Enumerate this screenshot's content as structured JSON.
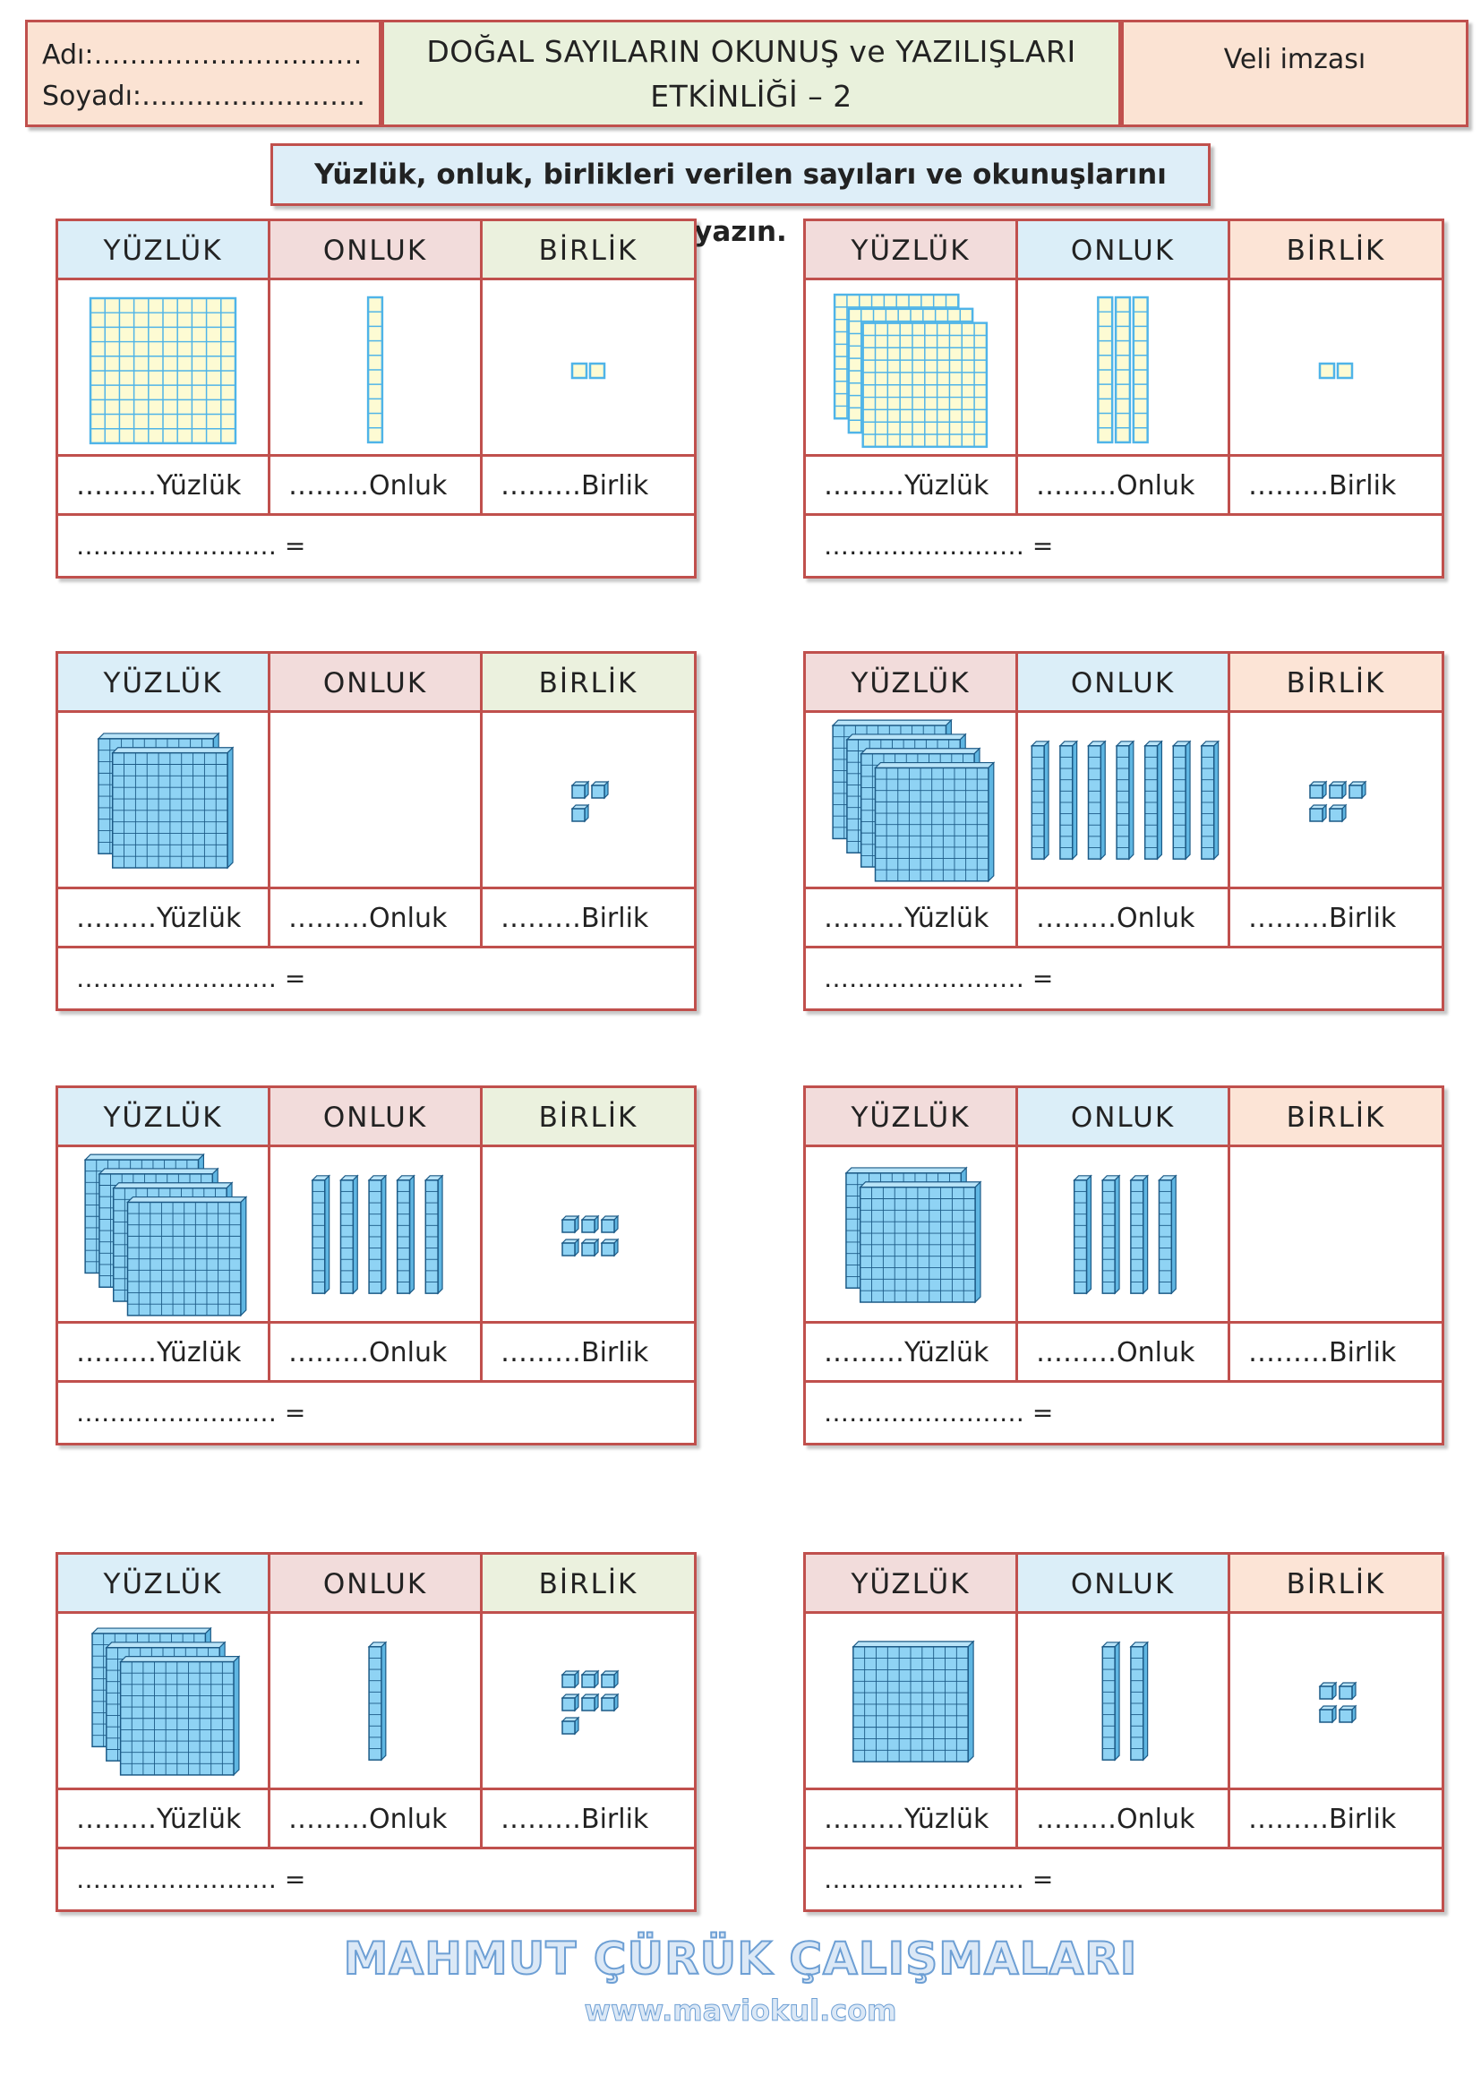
{
  "header": {
    "name_label": "Adı:",
    "name_dots": "………………………………………",
    "surname_label": "Soyadı:",
    "surname_dots": "…………………………….",
    "title_line1": "DOĞAL SAYILARIN OKUNUŞ ve YAZILIŞLARI",
    "title_line2": "ETKİNLİĞİ – 2",
    "signature_label": "Veli imzası"
  },
  "instruction": "Yüzlük, onluk, birlikleri verilen sayıları ve okunuşlarını yazın.",
  "labels": {
    "hundreds": "YÜZLÜK",
    "tens": "ONLUK",
    "ones": "BİRLİK",
    "hundreds_blank": "………Yüzlük",
    "tens_blank": "………Onluk",
    "ones_blank": "………Birlik",
    "answer_blank": "…………………… ="
  },
  "colors": {
    "border": "#c0504d",
    "blue_header": "#dbeef8",
    "pink_header": "#f2dcdb",
    "green_header": "#ebf1de",
    "peach_header": "#fce4d6",
    "flat_fill": "#fdfbd3",
    "flat_line": "#4fb4e8",
    "block_fill": "#8fd3f4",
    "block_line": "#1c5a86"
  },
  "exercises": [
    {
      "style": "flat",
      "hundreds": 1,
      "tens": 1,
      "ones": 2,
      "header_colors": [
        "blue_header",
        "pink_header",
        "green_header"
      ]
    },
    {
      "style": "flat",
      "hundreds": 3,
      "tens": 3,
      "ones": 2,
      "header_colors": [
        "pink_header",
        "blue_header",
        "peach_header"
      ]
    },
    {
      "style": "cube",
      "hundreds": 2,
      "tens": 0,
      "ones": 3,
      "header_colors": [
        "blue_header",
        "pink_header",
        "green_header"
      ]
    },
    {
      "style": "cube",
      "hundreds": 4,
      "tens": 7,
      "ones": 5,
      "header_colors": [
        "pink_header",
        "blue_header",
        "peach_header"
      ]
    },
    {
      "style": "cube",
      "hundreds": 4,
      "tens": 5,
      "ones": 6,
      "header_colors": [
        "blue_header",
        "pink_header",
        "green_header"
      ]
    },
    {
      "style": "cube",
      "hundreds": 2,
      "tens": 4,
      "ones": 0,
      "header_colors": [
        "pink_header",
        "blue_header",
        "peach_header"
      ]
    },
    {
      "style": "cube",
      "hundreds": 3,
      "tens": 1,
      "ones": 7,
      "header_colors": [
        "blue_header",
        "pink_header",
        "green_header"
      ]
    },
    {
      "style": "cube",
      "hundreds": 1,
      "tens": 2,
      "ones": 4,
      "header_colors": [
        "pink_header",
        "blue_header",
        "peach_header"
      ]
    }
  ],
  "footer": {
    "title": "MAHMUT ÇÜRÜK ÇALIŞMALARI",
    "url": "www.maviokul.com"
  }
}
